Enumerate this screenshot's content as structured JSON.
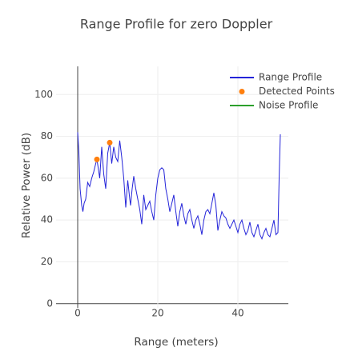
{
  "chart_data": {
    "type": "line",
    "title": "Range Profile for zero Doppler",
    "x_label": "Range (meters)",
    "y_label": "Relative Power (dB)",
    "series": [
      {
        "name": "Range Profile",
        "color": "#2424d9",
        "mode": "lines",
        "x": [
          0,
          0.3,
          0.6,
          1,
          1.3,
          1.6,
          2,
          2.5,
          3,
          3.5,
          4,
          4.5,
          4.8,
          5.2,
          5.5,
          6,
          6.5,
          7,
          7.5,
          8,
          8.5,
          9,
          9.5,
          10,
          10.5,
          11,
          11.5,
          12,
          12.5,
          13,
          13.2,
          13.6,
          14,
          14.5,
          15,
          15.5,
          16,
          16.5,
          17,
          17.5,
          18,
          18.5,
          19,
          19.5,
          20,
          20.5,
          21,
          21.5,
          22,
          22.5,
          23,
          23.5,
          24,
          24.5,
          25,
          25.5,
          26,
          26.5,
          27,
          27.5,
          28,
          28.5,
          29,
          29.5,
          30,
          30.5,
          31,
          31.5,
          32,
          32.5,
          33,
          33.5,
          34,
          34.5,
          35,
          35.5,
          36,
          36.5,
          37,
          37.5,
          38,
          38.5,
          39,
          39.5,
          40,
          40.5,
          41,
          41.5,
          42,
          42.5,
          43,
          43.5,
          44,
          44.5,
          45,
          45.5,
          46,
          46.5,
          47,
          47.5,
          48,
          48.5,
          49,
          49.5,
          50,
          50.3,
          50.6
        ],
        "values": [
          82,
          72,
          55,
          47,
          44,
          48,
          50,
          58,
          56,
          60,
          63,
          67,
          69,
          64,
          60,
          75,
          62,
          55,
          72,
          77,
          67,
          75,
          70,
          68,
          78,
          70,
          60,
          46,
          59,
          50,
          47,
          55,
          61,
          55,
          50,
          45,
          38,
          52,
          45,
          47,
          49,
          44,
          40,
          52,
          60,
          64,
          65,
          64,
          55,
          50,
          44,
          48,
          52,
          44,
          37,
          44,
          48,
          42,
          38,
          43,
          45,
          40,
          36,
          40,
          42,
          38,
          33,
          40,
          44,
          45,
          43,
          48,
          53,
          47,
          35,
          40,
          44,
          42,
          41,
          38,
          36,
          38,
          40,
          37,
          34,
          38,
          40,
          36,
          33,
          35,
          39,
          34,
          32,
          35,
          38,
          33,
          31,
          34,
          36,
          33,
          32,
          36,
          40,
          33,
          34,
          60,
          81
        ]
      },
      {
        "name": "Detected Points",
        "color": "#ff7f0e",
        "mode": "markers",
        "x": [
          4.8,
          8
        ],
        "values": [
          69,
          77
        ]
      },
      {
        "name": "Noise Profile",
        "color": "#2ca02c",
        "mode": "lines",
        "x": [],
        "values": []
      }
    ],
    "xlim": [
      -5.4,
      52.6
    ],
    "ylim": [
      -2,
      113.5
    ],
    "xticks": [
      0,
      20,
      40
    ],
    "yticks": [
      0,
      20,
      40,
      60,
      80,
      100
    ],
    "grid": true,
    "legend": "top-right"
  }
}
